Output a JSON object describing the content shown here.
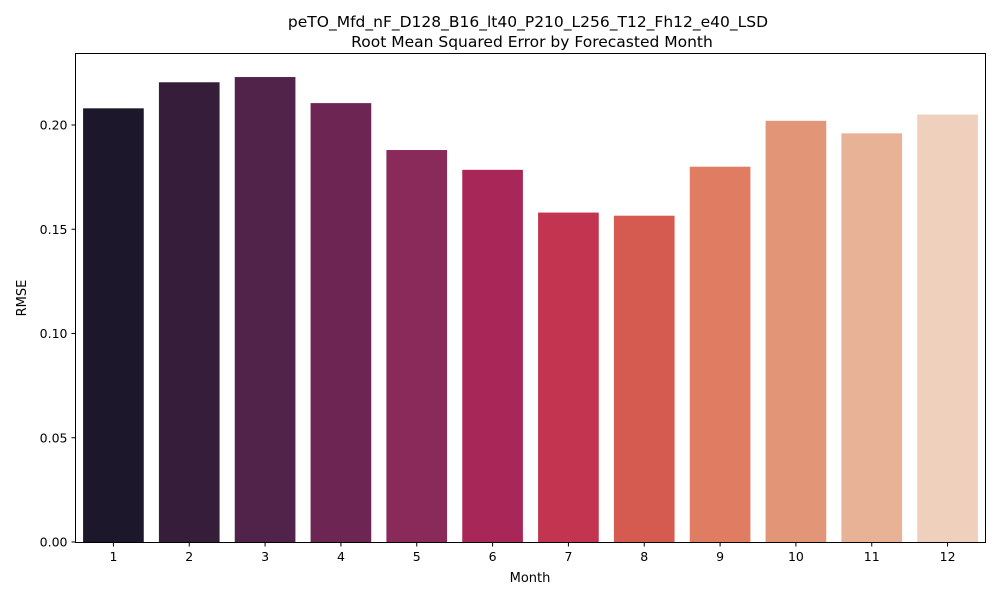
{
  "chart_data": {
    "type": "bar",
    "title": "peTO_Mfd_nF_D128_B16_lt40_P210_L256_T12_Fh12_e40_LSD",
    "subtitle": "Root Mean Squared Error by Forecasted Month",
    "xlabel": "Month",
    "ylabel": "RMSE",
    "categories": [
      "1",
      "2",
      "3",
      "4",
      "5",
      "6",
      "7",
      "8",
      "9",
      "10",
      "11",
      "12"
    ],
    "values": [
      0.208,
      0.2205,
      0.223,
      0.2105,
      0.188,
      0.1785,
      0.158,
      0.1565,
      0.18,
      0.202,
      0.196,
      0.205
    ],
    "colors": [
      "#1d172b",
      "#361e3b",
      "#51224a",
      "#6d2553",
      "#8a2a5b",
      "#a92758",
      "#c2344f",
      "#d55b51",
      "#df7c62",
      "#e29677",
      "#e7b296",
      "#efd0bc"
    ],
    "ylim": [
      0,
      0.235
    ],
    "yticks": [
      "0.00",
      "0.05",
      "0.10",
      "0.15",
      "0.20"
    ],
    "grid": false
  }
}
